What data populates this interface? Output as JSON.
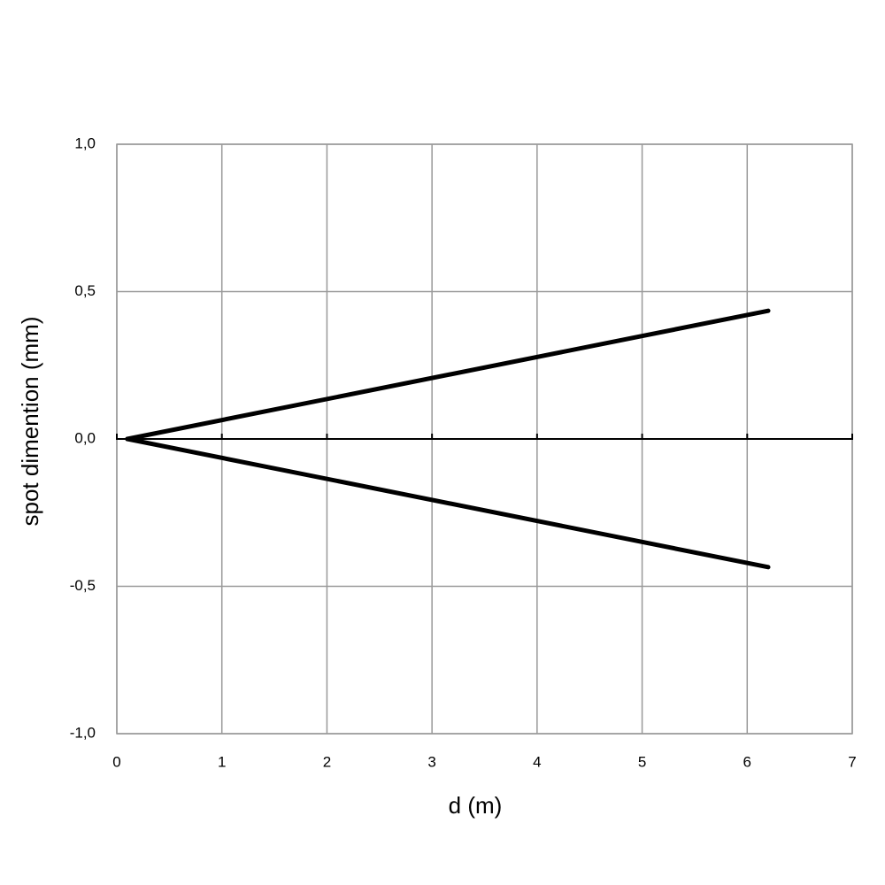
{
  "chart_data": {
    "type": "line",
    "x_label": "d (m)",
    "y_label": "spot dimention (mm)",
    "xlim": [
      0,
      7
    ],
    "xticks": [
      0,
      1,
      2,
      3,
      4,
      5,
      6,
      7
    ],
    "ylim": [
      -1,
      1
    ],
    "yticks": [
      {
        "value": 1,
        "label": "1,0"
      },
      {
        "value": 0.5,
        "label": "0,5"
      },
      {
        "value": 0,
        "label": "0,0"
      },
      {
        "value": -0.5,
        "label": "-0,5"
      },
      {
        "value": -1,
        "label": "-1,0"
      }
    ],
    "grid": true,
    "series": [
      {
        "color": "#000000",
        "x": [
          0.1,
          6.2
        ],
        "values": [
          0,
          0.435
        ]
      },
      {
        "color": "#000000",
        "x": [
          0.1,
          6.2
        ],
        "values": [
          0,
          -0.435
        ]
      }
    ]
  }
}
